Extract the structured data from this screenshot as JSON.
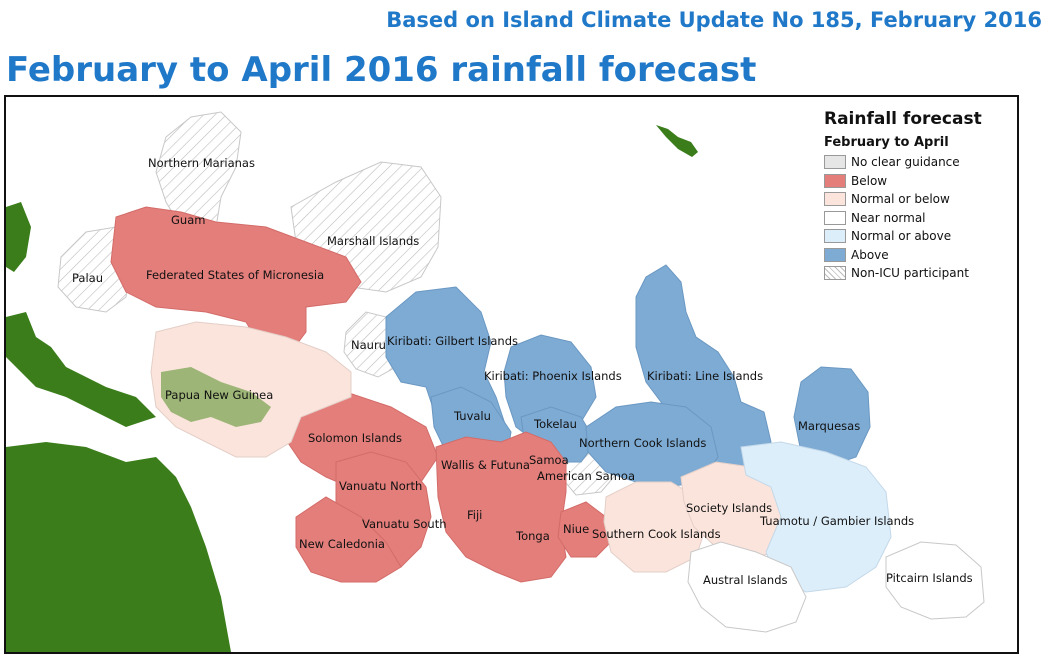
{
  "header": {
    "subtitle": "Based on Island Climate Update No 185, February 2016",
    "title": "February to April 2016 rainfall forecast"
  },
  "legend": {
    "title": "Rainfall forecast",
    "subtitle": "February to April",
    "items": [
      {
        "label": "No clear guidance",
        "color": "#e6e6e6",
        "pattern": "solid"
      },
      {
        "label": "Below",
        "color": "#e37e7b",
        "pattern": "solid"
      },
      {
        "label": "Normal or below",
        "color": "#fbe4dc",
        "pattern": "solid"
      },
      {
        "label": "Near normal",
        "color": "#ffffff",
        "pattern": "solid"
      },
      {
        "label": "Normal or above",
        "color": "#ddeefb",
        "pattern": "solid"
      },
      {
        "label": "Above",
        "color": "#7eabd4",
        "pattern": "solid"
      },
      {
        "label": "Non-ICU participant",
        "color": "#ffffff",
        "pattern": "hatched"
      }
    ]
  },
  "regions": [
    {
      "name": "Northern Marianas",
      "category": "Non-ICU participant"
    },
    {
      "name": "Guam",
      "category": "Non-ICU participant"
    },
    {
      "name": "Palau",
      "category": "Non-ICU participant"
    },
    {
      "name": "Federated States of Micronesia",
      "category": "Below"
    },
    {
      "name": "Marshall Islands",
      "category": "Non-ICU participant"
    },
    {
      "name": "Nauru",
      "category": "Non-ICU participant"
    },
    {
      "name": "Kiribati: Gilbert Islands",
      "category": "Above"
    },
    {
      "name": "Kiribati: Phoenix Islands",
      "category": "Above"
    },
    {
      "name": "Kiribati: Line Islands",
      "category": "Above"
    },
    {
      "name": "Papua New Guinea",
      "category": "Normal or below"
    },
    {
      "name": "Tuvalu",
      "category": "Above"
    },
    {
      "name": "Tokelau",
      "category": "Above"
    },
    {
      "name": "Solomon Islands",
      "category": "Below"
    },
    {
      "name": "Northern Cook Islands",
      "category": "Above"
    },
    {
      "name": "Marquesas",
      "category": "Above"
    },
    {
      "name": "Wallis & Futuna",
      "category": "Below"
    },
    {
      "name": "Samoa",
      "category": "Below"
    },
    {
      "name": "American Samoa",
      "category": "Non-ICU participant"
    },
    {
      "name": "Vanuatu North",
      "category": "Below"
    },
    {
      "name": "Vanuatu South",
      "category": "Below"
    },
    {
      "name": "Fiji",
      "category": "Below"
    },
    {
      "name": "Niue",
      "category": "Below"
    },
    {
      "name": "Society Islands",
      "category": "Normal or below"
    },
    {
      "name": "Tuamotu / Gambier Islands",
      "category": "Normal or above"
    },
    {
      "name": "Southern Cook Islands",
      "category": "Normal or below"
    },
    {
      "name": "Tonga",
      "category": "Below"
    },
    {
      "name": "New Caledonia",
      "category": "Below"
    },
    {
      "name": "Austral Islands",
      "category": "Near normal"
    },
    {
      "name": "Pitcairn Islands",
      "category": "Near normal"
    }
  ]
}
